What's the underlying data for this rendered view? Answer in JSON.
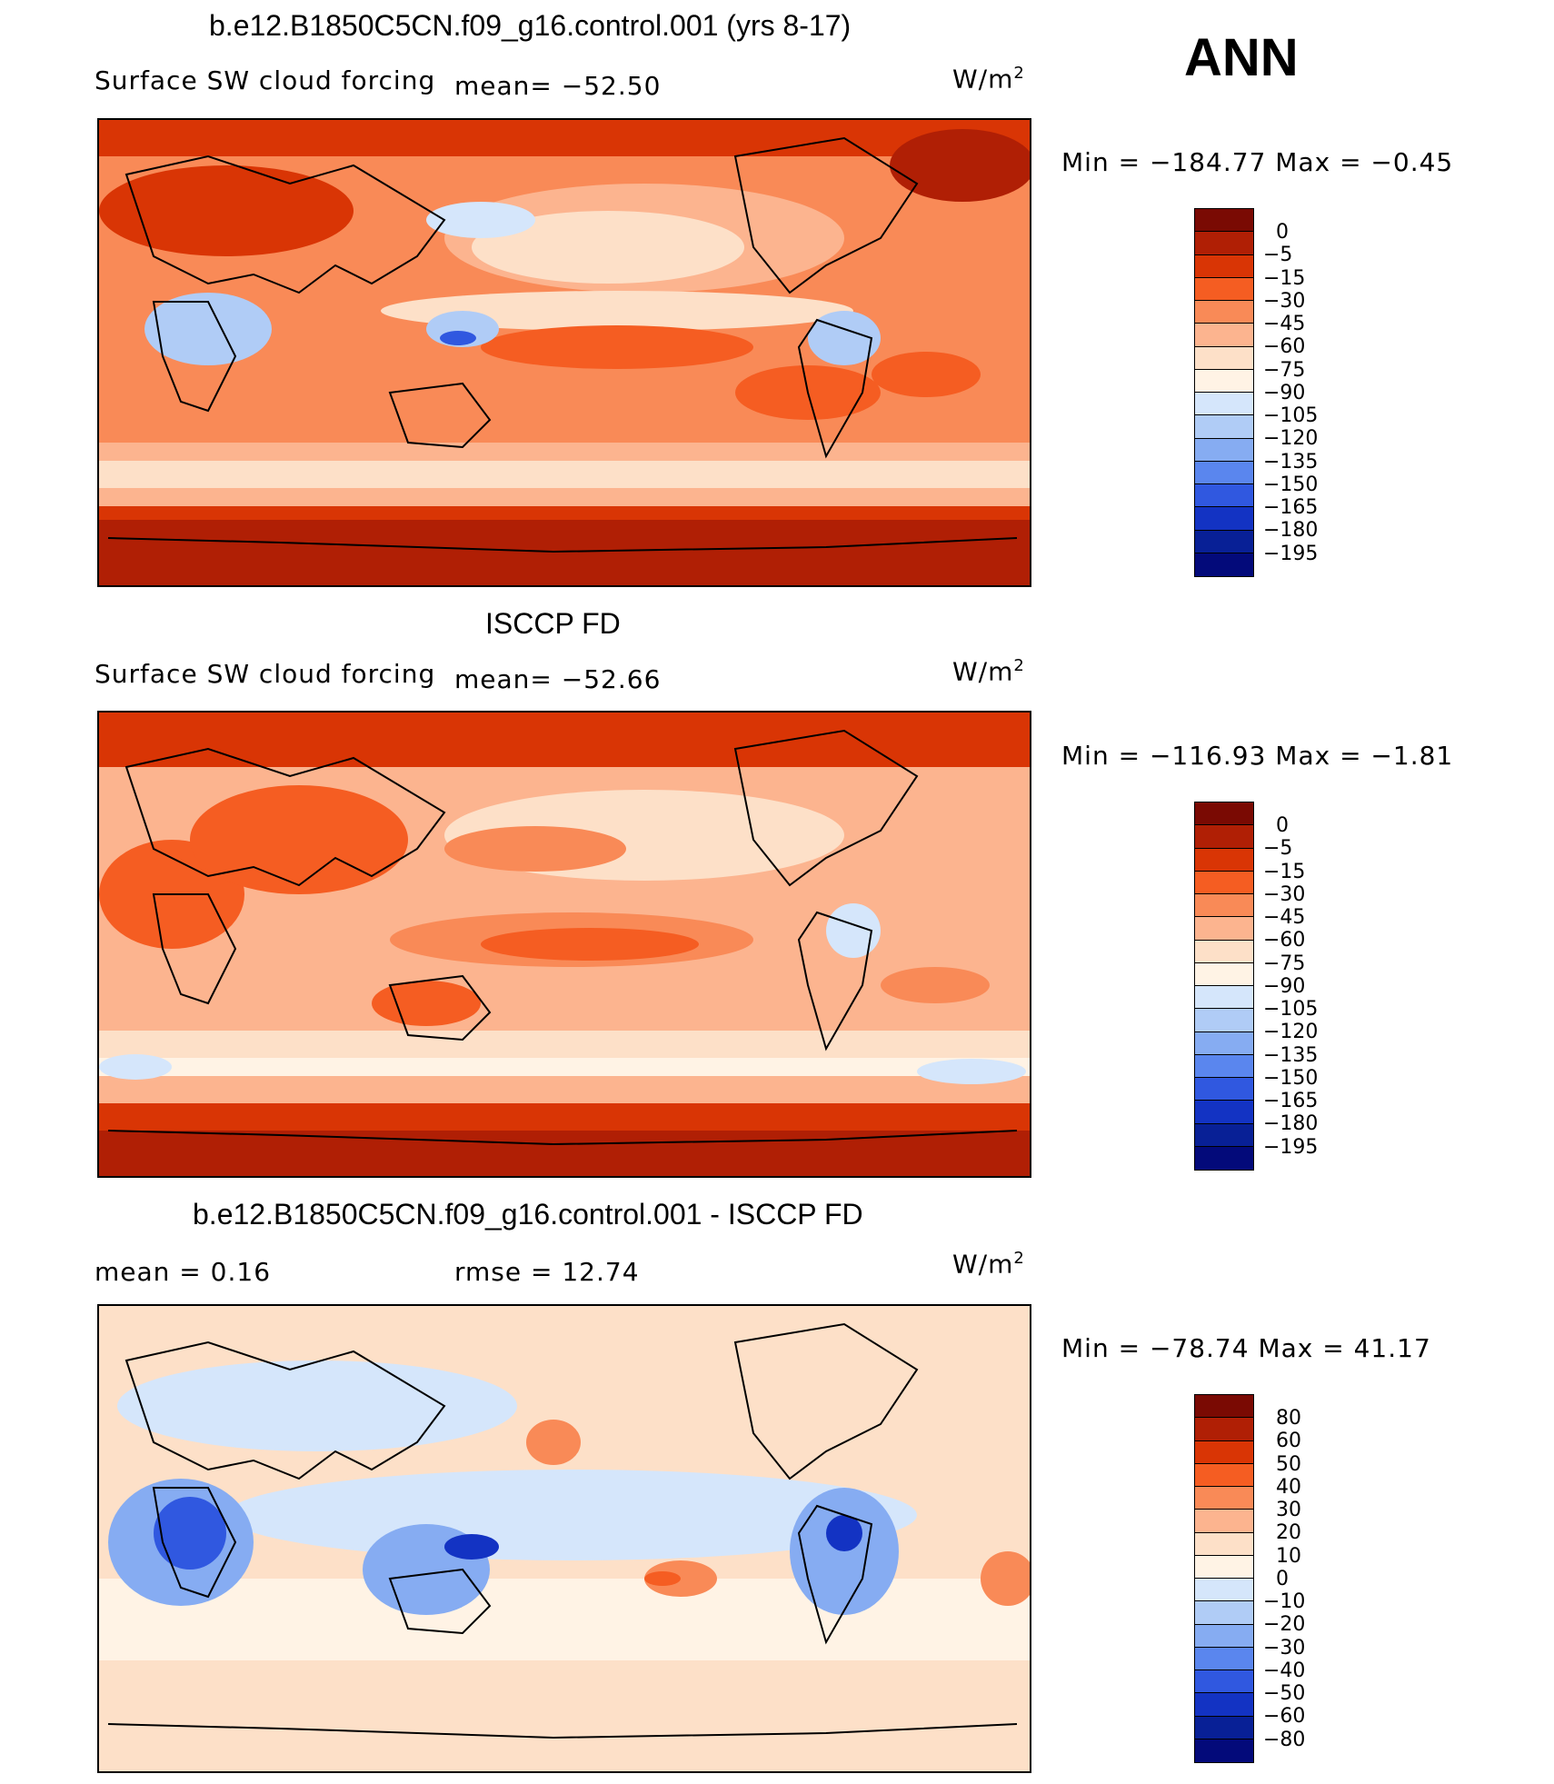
{
  "season": "ANN",
  "units_symbol": "W/m",
  "units_sup": "2",
  "panels": [
    {
      "title": "b.e12.B1850C5CN.f09_g16.control.001 (yrs 8-17)",
      "field": "Surface SW cloud forcing",
      "stat_left": "",
      "stat_mid": "mean=  −52.50",
      "minmax": "Min  =  −184.77  Max  =    −0.45",
      "levels": [
        "0",
        "−5",
        "−15",
        "−30",
        "−45",
        "−60",
        "−75",
        "−90",
        "−105",
        "−120",
        "−135",
        "−150",
        "−165",
        "−180",
        "−195"
      ],
      "colors": [
        "#7a0a03",
        "#b01f05",
        "#d93505",
        "#f55d22",
        "#f98a57",
        "#fcb48f",
        "#fde0c8",
        "#fff3e5",
        "#d5e6fb",
        "#b0ccf6",
        "#86acf2",
        "#5a86ee",
        "#3058e0",
        "#1333c3",
        "#082096",
        "#030a7a"
      ]
    },
    {
      "title": "ISCCP FD",
      "field": "Surface SW cloud forcing",
      "stat_left": "",
      "stat_mid": "mean=  −52.66",
      "minmax": "Min  =  −116.93  Max  =    −1.81",
      "levels": [
        "0",
        "−5",
        "−15",
        "−30",
        "−45",
        "−60",
        "−75",
        "−90",
        "−105",
        "−120",
        "−135",
        "−150",
        "−165",
        "−180",
        "−195"
      ],
      "colors": [
        "#7a0a03",
        "#b01f05",
        "#d93505",
        "#f55d22",
        "#f98a57",
        "#fcb48f",
        "#fde0c8",
        "#fff3e5",
        "#d5e6fb",
        "#b0ccf6",
        "#86acf2",
        "#5a86ee",
        "#3058e0",
        "#1333c3",
        "#082096",
        "#030a7a"
      ]
    },
    {
      "title": "b.e12.B1850C5CN.f09_g16.control.001 - ISCCP FD",
      "field": "",
      "stat_left": "mean  =     0.16",
      "stat_mid": "rmse  =    12.74",
      "minmax": "Min  =  −78.74  Max  =    41.17",
      "levels": [
        "80",
        "60",
        "50",
        "40",
        "30",
        "20",
        "10",
        "0",
        "−10",
        "−20",
        "−30",
        "−40",
        "−50",
        "−60",
        "−80"
      ],
      "colors": [
        "#7a0a03",
        "#b01f05",
        "#d93505",
        "#f55d22",
        "#f98a57",
        "#fcb48f",
        "#fde0c8",
        "#fff3e5",
        "#d5e6fb",
        "#b0ccf6",
        "#86acf2",
        "#5a86ee",
        "#3058e0",
        "#1333c3",
        "#082096",
        "#030a7a"
      ]
    }
  ]
}
